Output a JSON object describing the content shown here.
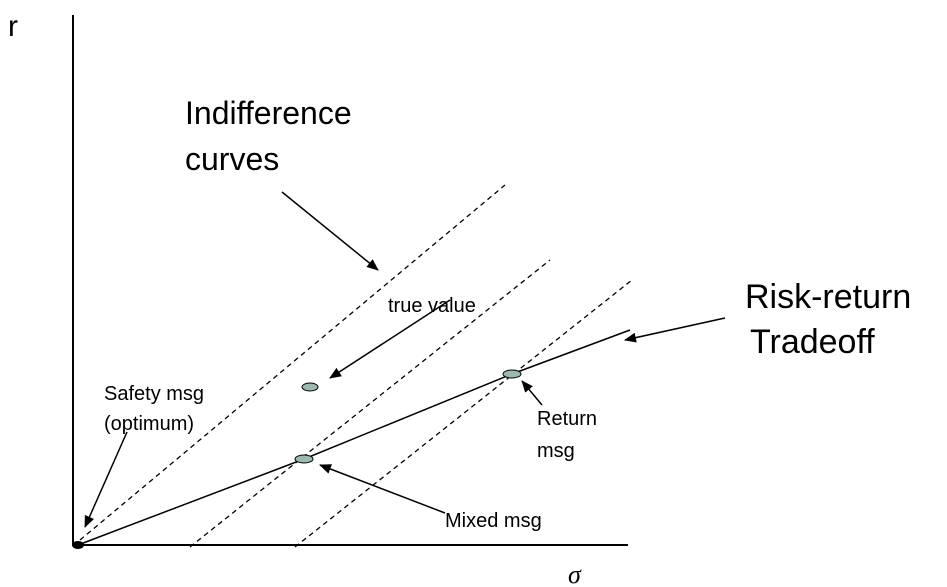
{
  "axes": {
    "y_label": "r",
    "x_label": "σ"
  },
  "annotations": {
    "indifference": [
      "Indifference",
      "curves"
    ],
    "true_value": "true value",
    "safety": [
      "Safety msg",
      "(optimum)"
    ],
    "risk_return": [
      "Risk-return",
      "Tradeoff"
    ],
    "return_msg": [
      "Return",
      "msg"
    ],
    "mixed_msg": "Mixed msg"
  }
}
